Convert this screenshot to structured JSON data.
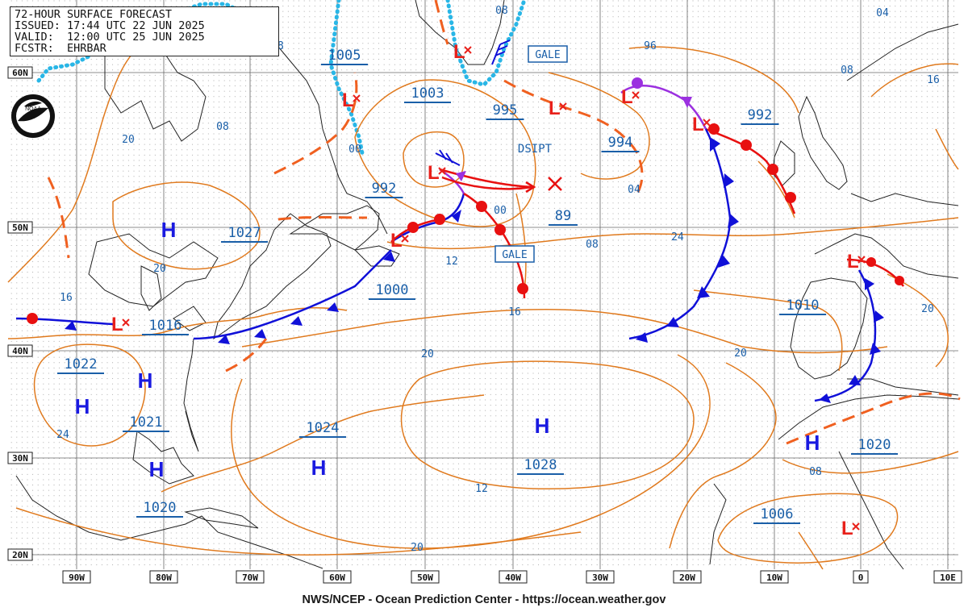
{
  "header": {
    "line1": "72-HOUR SURFACE FORECAST",
    "line2": "ISSUED: 17:44 UTC 22 JUN 2025",
    "line3": "VALID:  12:00 UTC 25 JUN 2025",
    "line4": "FCSTR:  EHRBAR"
  },
  "footer": "NWS/NCEP - Ocean Prediction Center - https://ocean.weather.gov",
  "logo_text": "NOAA",
  "colors": {
    "isobar": "#e07a1e",
    "label": "#1a5fa8",
    "low": "#e8201a",
    "high": "#1a1ae0",
    "cold_front": "#1010d8",
    "warm_front": "#e81010",
    "occluded": "#9b30e0",
    "trough": "#f06020",
    "ice": "#29b6e6",
    "grid": "#555555",
    "coast": "#202020"
  },
  "lat_labels": [
    "60N",
    "50N",
    "40N",
    "30N",
    "20N"
  ],
  "lon_labels": [
    "90W",
    "80W",
    "70W",
    "60W",
    "50W",
    "40W",
    "30W",
    "20W",
    "10W",
    "0",
    "10E"
  ],
  "pressure_boxes": [
    "1005",
    "1003",
    "995",
    "992",
    "994",
    "992",
    "89",
    "1027",
    "1000",
    "1016",
    "1022",
    "1021",
    "1020",
    "1024",
    "1028",
    "1010",
    "1020",
    "1006"
  ],
  "isobar_labels": [
    "08",
    "08",
    "96",
    "08",
    "04",
    "16",
    "20",
    "08",
    "00",
    "00",
    "04",
    "12",
    "08",
    "24",
    "20",
    "16",
    "16",
    "20",
    "20",
    "20",
    "24",
    "12",
    "08",
    "20"
  ],
  "text_labels": [
    "DSIPT",
    "GALE",
    "GALE"
  ]
}
